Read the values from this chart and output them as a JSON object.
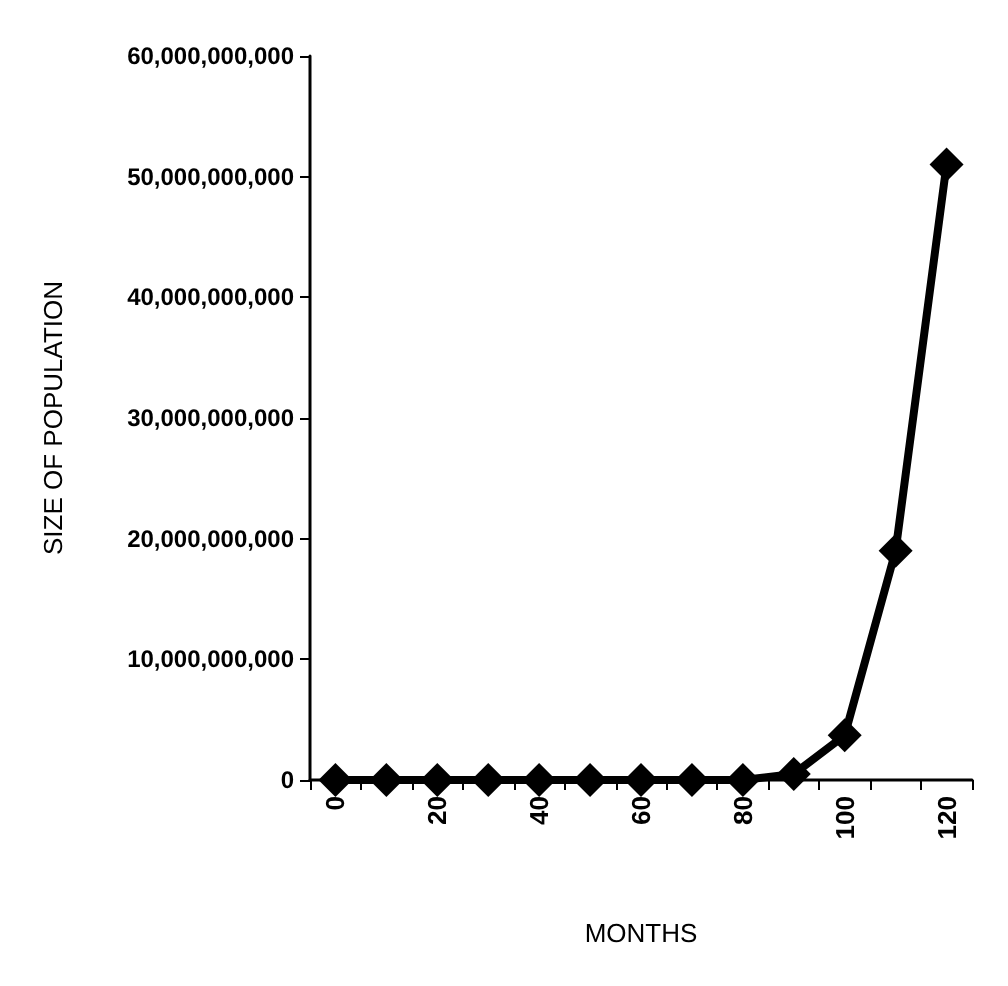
{
  "chart_data": {
    "type": "line",
    "xlabel": "MONTHS",
    "ylabel": "SIZE OF POPULATION",
    "categories": [
      "0",
      null,
      "20",
      null,
      "40",
      null,
      "60",
      null,
      "80",
      null,
      "100",
      null,
      "120"
    ],
    "series": [
      {
        "color": "#000000",
        "values": [
          0,
          0,
          0,
          0,
          0,
          0,
          0,
          0,
          0,
          500000000,
          3700000000,
          19000000000,
          51000000000
        ]
      }
    ],
    "ylim": [
      0,
      60000000000
    ],
    "yticks": [
      0,
      {
        "value": 10000000000,
        "label": "10,000,000,000"
      },
      {
        "value": 20000000000,
        "label": "20,000,000,000"
      },
      {
        "value": 30000000000,
        "label": "30,000,000,000"
      },
      {
        "value": 40000000000,
        "label": "40,000,000,000"
      },
      {
        "value": 50000000000,
        "label": "50,000,000,000"
      },
      {
        "value": 60000000000,
        "label": "60,000,000,000"
      }
    ],
    "marker": "diamond",
    "line_style": "solid"
  }
}
